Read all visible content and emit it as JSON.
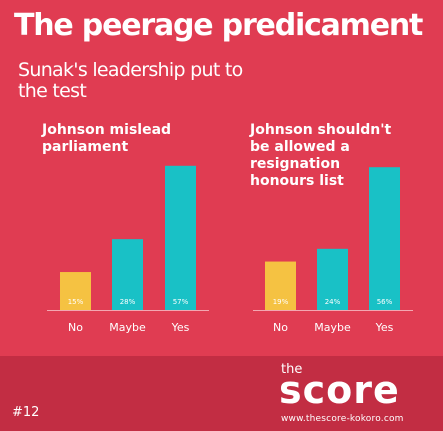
{
  "title": "The peerage predicament",
  "subtitle": "Sunak's leadership put to the test",
  "chart_data": [
    {
      "type": "bar",
      "title": "Johnson mislead\nparliament",
      "categories": [
        "No",
        "Maybe",
        "Yes"
      ],
      "values": [
        15,
        28,
        57
      ],
      "value_labels": [
        "15%",
        "28%",
        "57%"
      ],
      "colors": [
        "#f5c242",
        "#19c1c6",
        "#19c1c6"
      ],
      "grid": false
    },
    {
      "type": "bar",
      "title": "Johnson shouldn't\nbe allowed a\nresignation\nhonours list",
      "categories": [
        "No",
        "Maybe",
        "Yes"
      ],
      "values": [
        19,
        24,
        56
      ],
      "value_labels": [
        "19%",
        "24%",
        "56%"
      ],
      "colors": [
        "#f5c242",
        "#19c1c6",
        "#19c1c6"
      ],
      "grid": false
    }
  ],
  "footer": {
    "issue": "#12",
    "brand_small": "the",
    "brand_name": "score",
    "url": "www.thescore-kokoro.com"
  },
  "colors": {
    "background": "#e03c52",
    "footer_background": "#c22d43",
    "no": "#f5c242",
    "maybe_yes": "#19c1c6"
  }
}
